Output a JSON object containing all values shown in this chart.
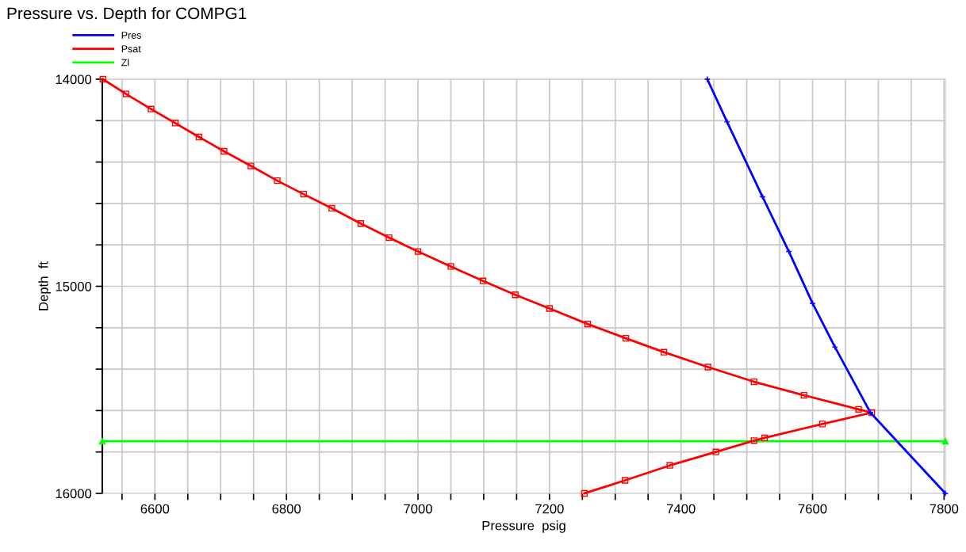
{
  "chart_data": {
    "type": "line",
    "title": "Pressure vs. Depth for COMPG1",
    "xlabel": "Pressure  psig",
    "ylabel": "Depth  ft",
    "xlim": [
      6520,
      7802
    ],
    "ylim": [
      16000,
      14000
    ],
    "xticks": [
      {
        "value": 6550,
        "label": null
      },
      6600,
      {
        "value": 6650,
        "label": null
      },
      {
        "value": 6700,
        "label": null
      },
      {
        "value": 6750,
        "label": null
      },
      6800,
      {
        "value": 6850,
        "label": null
      },
      {
        "value": 6900,
        "label": null
      },
      {
        "value": 6950,
        "label": null
      },
      7000,
      {
        "value": 7050,
        "label": null
      },
      {
        "value": 7100,
        "label": null
      },
      {
        "value": 7150,
        "label": null
      },
      7200,
      {
        "value": 7250,
        "label": null
      },
      {
        "value": 7300,
        "label": null
      },
      {
        "value": 7350,
        "label": null
      },
      7400,
      {
        "value": 7450,
        "label": null
      },
      {
        "value": 7500,
        "label": null
      },
      {
        "value": 7550,
        "label": null
      },
      7600,
      {
        "value": 7650,
        "label": null
      },
      {
        "value": 7700,
        "label": null
      },
      {
        "value": 7750,
        "label": null
      },
      7800
    ],
    "yticks": [
      14000,
      {
        "value": 14200,
        "label": null
      },
      {
        "value": 14400,
        "label": null
      },
      {
        "value": 14600,
        "label": null
      },
      {
        "value": 14800,
        "label": null
      },
      15000,
      {
        "value": 15200,
        "label": null
      },
      {
        "value": 15400,
        "label": null
      },
      {
        "value": 15600,
        "label": null
      },
      {
        "value": 15800,
        "label": null
      },
      16000
    ],
    "grid": true,
    "legend": "top left",
    "series": [
      {
        "name": "Pres",
        "color": "#0000ff",
        "marker": "cross",
        "x": [
          7440,
          7470,
          7524,
          7564,
          7600,
          7634,
          7688,
          7802
        ],
        "values": [
          14000,
          14206,
          14568,
          14832,
          15082,
          15293,
          15610,
          16000
        ]
      },
      {
        "name": "Psat",
        "color": "#ff0000",
        "marker": "square",
        "x": [
          6521,
          6556,
          6594,
          6631,
          6667,
          6705,
          6746,
          6786,
          6826,
          6869,
          6913,
          6956,
          7000,
          7050,
          7099,
          7148,
          7200,
          7258,
          7316,
          7374,
          7441,
          7511,
          7587,
          7670,
          7690,
          7615,
          7527,
          7511,
          7453,
          7383,
          7315,
          7253
        ],
        "values": [
          14000,
          14071,
          14144,
          14212,
          14279,
          14348,
          14419,
          14490,
          14555,
          14623,
          14697,
          14765,
          14832,
          14904,
          14974,
          15041,
          15107,
          15182,
          15251,
          15318,
          15390,
          15461,
          15526,
          15594,
          15610,
          15665,
          15732,
          15745,
          15800,
          15865,
          15937,
          16000
        ]
      },
      {
        "name": "Zl",
        "color": "#00ff00",
        "marker": "triangle",
        "x": [
          6520,
          7802
        ],
        "values": [
          15748,
          15748
        ]
      }
    ]
  }
}
